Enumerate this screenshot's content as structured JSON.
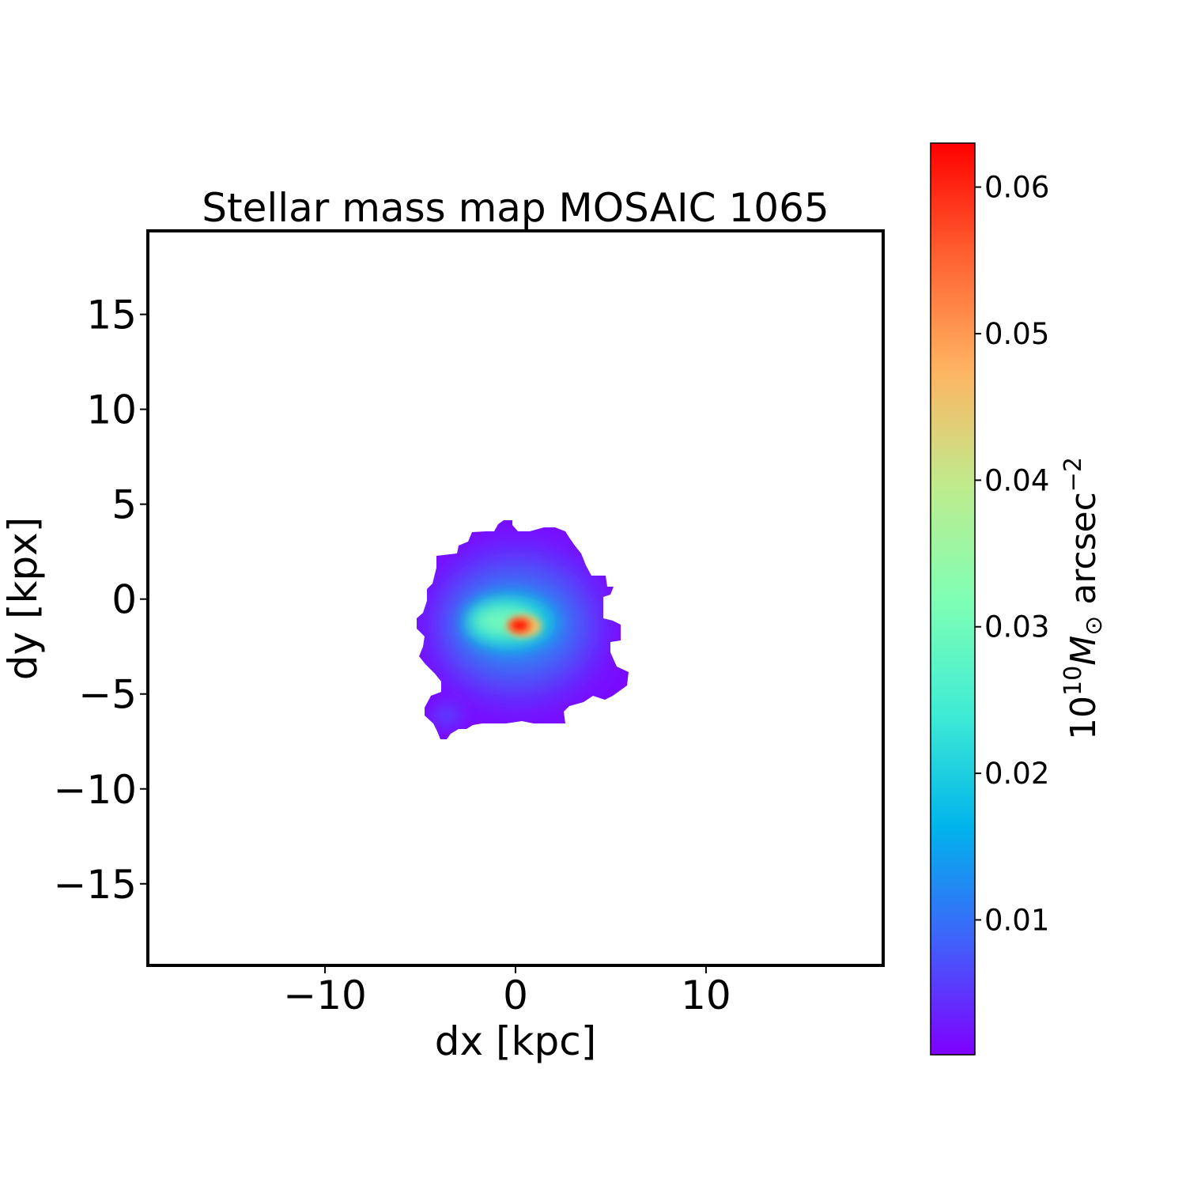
{
  "chart_data": {
    "type": "heatmap",
    "title": "Stellar mass map MOSAIC 1065",
    "xlabel": "dx [kpc]",
    "ylabel": "dy [kpx]",
    "xlim": [
      -19.3,
      19.3
    ],
    "ylim": [
      -19.3,
      19.4
    ],
    "xticks": [
      -10,
      0,
      10
    ],
    "xtick_labels": [
      "−10",
      "0",
      "10"
    ],
    "yticks": [
      -15,
      -10,
      -5,
      0,
      5,
      10,
      15
    ],
    "ytick_labels": [
      "−15",
      "−10",
      "−5",
      "0",
      "5",
      "10",
      "15"
    ],
    "grid": false,
    "colormap": "rainbow",
    "colorbar": {
      "label_base": "10",
      "label_exp": "10",
      "label_symbol": "M",
      "label_sub": "⊙",
      "label_unit": " arcsec",
      "label_unit_exp": "−2",
      "range": [
        0.0008,
        0.063
      ],
      "ticks": [
        0.01,
        0.02,
        0.03,
        0.04,
        0.05,
        0.06
      ],
      "tick_labels": [
        "0.01",
        "0.02",
        "0.03",
        "0.04",
        "0.05",
        "0.06"
      ],
      "colors": [
        "#8000ff",
        "#4062fa",
        "#00b4eb",
        "#40ecd4",
        "#80ffb4",
        "#c0eb8d",
        "#ffb462",
        "#ff6232",
        "#ff0000"
      ]
    },
    "peak": {
      "dx": 0.3,
      "dy": -1.4,
      "value": 0.063
    }
  }
}
